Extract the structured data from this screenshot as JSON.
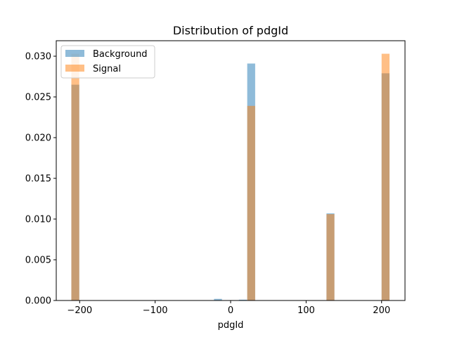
{
  "chart_data": {
    "type": "bar",
    "title": "Distribution of pdgId",
    "xlabel": "pdgId",
    "ylabel": "",
    "xlim": [
      -231,
      231
    ],
    "ylim": [
      0,
      0.0319
    ],
    "xticks": [
      -200,
      -100,
      0,
      100,
      200
    ],
    "xtick_labels": [
      "−200",
      "−100",
      "0",
      "100",
      "200"
    ],
    "yticks": [
      0.0,
      0.005,
      0.01,
      0.015,
      0.02,
      0.025,
      0.03
    ],
    "ytick_labels": [
      "0.000",
      "0.005",
      "0.010",
      "0.015",
      "0.020",
      "0.025",
      "0.030"
    ],
    "grid": false,
    "legend": "top-left",
    "bin_width": 10.5,
    "series": [
      {
        "name": "Background",
        "color": "#1f77b4",
        "alpha": 0.5,
        "bins": [
          {
            "x0": -211,
            "value": 0.0265
          },
          {
            "x0": -22,
            "value": 0.0002
          },
          {
            "x0": 11,
            "value": 0.0001
          },
          {
            "x0": 22,
            "value": 0.0291
          },
          {
            "x0": 127,
            "value": 0.0107
          },
          {
            "x0": 200,
            "value": 0.0279
          }
        ]
      },
      {
        "name": "Signal",
        "color": "#ff7f0e",
        "alpha": 0.5,
        "bins": [
          {
            "x0": -211,
            "value": 0.0303
          },
          {
            "x0": 22,
            "value": 0.0239
          },
          {
            "x0": 127,
            "value": 0.0106
          },
          {
            "x0": 200,
            "value": 0.0303
          }
        ]
      }
    ]
  }
}
